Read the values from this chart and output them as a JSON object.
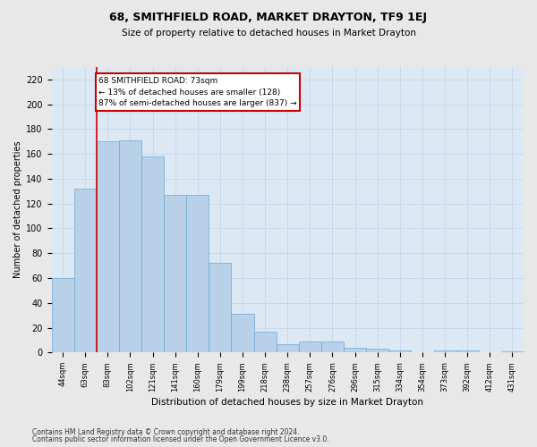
{
  "title": "68, SMITHFIELD ROAD, MARKET DRAYTON, TF9 1EJ",
  "subtitle": "Size of property relative to detached houses in Market Drayton",
  "xlabel": "Distribution of detached houses by size in Market Drayton",
  "ylabel": "Number of detached properties",
  "categories": [
    "44sqm",
    "63sqm",
    "83sqm",
    "102sqm",
    "121sqm",
    "141sqm",
    "160sqm",
    "179sqm",
    "199sqm",
    "218sqm",
    "238sqm",
    "257sqm",
    "276sqm",
    "296sqm",
    "315sqm",
    "334sqm",
    "354sqm",
    "373sqm",
    "392sqm",
    "412sqm",
    "431sqm"
  ],
  "values": [
    60,
    132,
    170,
    171,
    158,
    127,
    127,
    72,
    31,
    17,
    7,
    9,
    9,
    4,
    3,
    2,
    0,
    2,
    2,
    0,
    1
  ],
  "bar_color": "#b8d0e8",
  "bar_edge_color": "#6aaad4",
  "grid_color": "#c8d8ea",
  "bg_color": "#dce9f5",
  "fig_color": "#e8e8e8",
  "annotation_text": "68 SMITHFIELD ROAD: 73sqm\n← 13% of detached houses are smaller (128)\n87% of semi-detached houses are larger (837) →",
  "annotation_box_color": "#ffffff",
  "annotation_box_edge_color": "#cc0000",
  "vline_x": 1.5,
  "ylim": [
    0,
    230
  ],
  "yticks": [
    0,
    20,
    40,
    60,
    80,
    100,
    120,
    140,
    160,
    180,
    200,
    220
  ],
  "footer_line1": "Contains HM Land Registry data © Crown copyright and database right 2024.",
  "footer_line2": "Contains public sector information licensed under the Open Government Licence v3.0."
}
